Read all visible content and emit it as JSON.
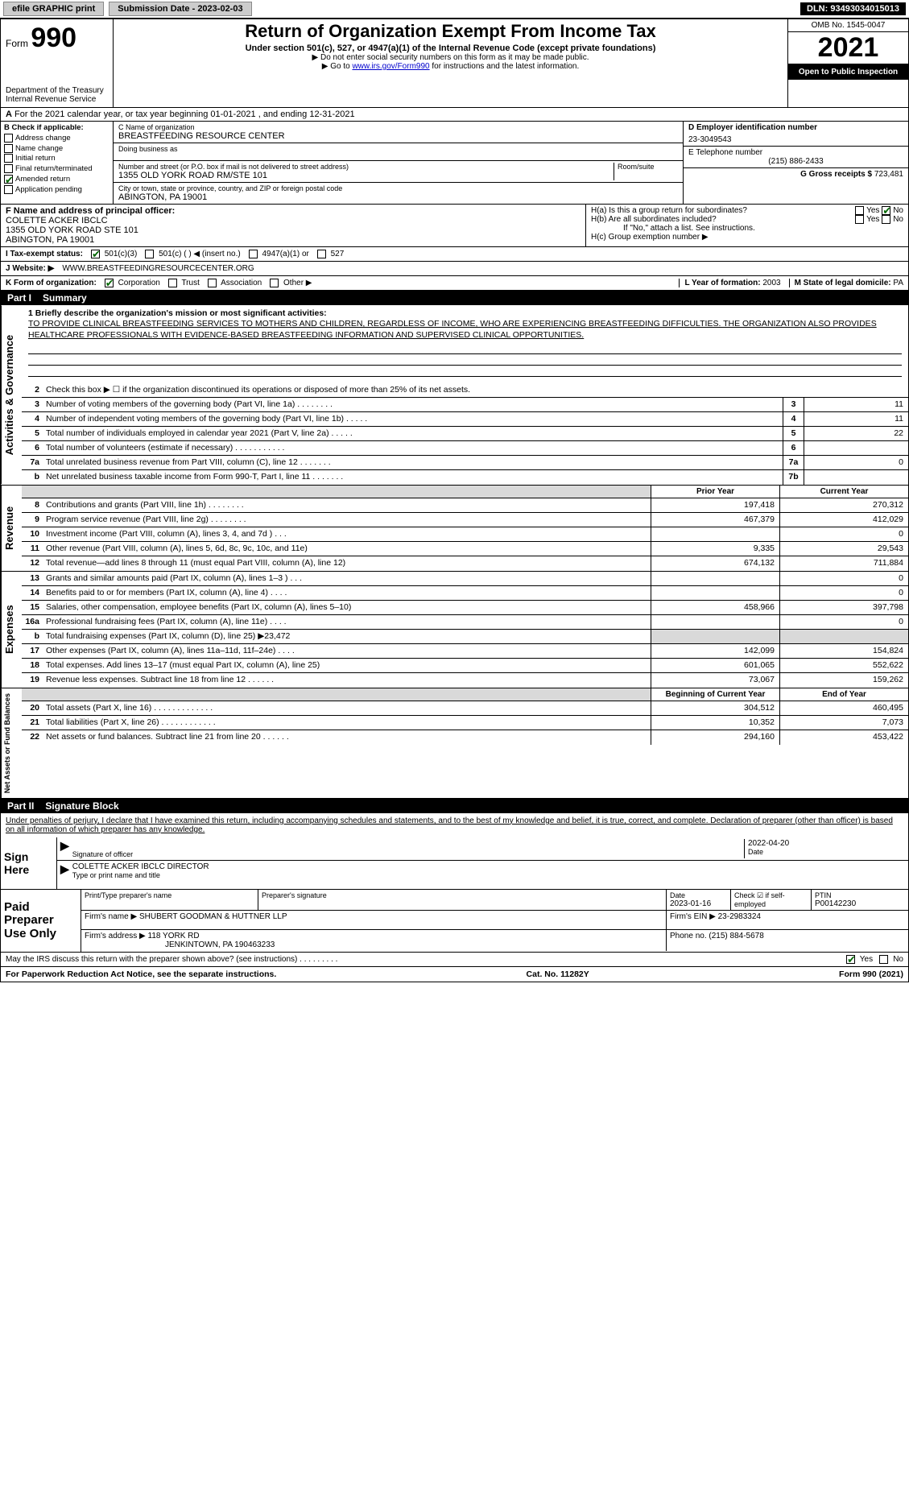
{
  "topbar": {
    "efile_label": "efile GRAPHIC print",
    "submission_label": "Submission Date - 2023-02-03",
    "dln_label": "DLN: 93493034015013"
  },
  "header": {
    "form_prefix": "Form",
    "form_number": "990",
    "dept": "Department of the Treasury",
    "irs": "Internal Revenue Service",
    "title": "Return of Organization Exempt From Income Tax",
    "subtitle": "Under section 501(c), 527, or 4947(a)(1) of the Internal Revenue Code (except private foundations)",
    "note1": "▶ Do not enter social security numbers on this form as it may be made public.",
    "note2_prefix": "▶ Go to ",
    "note2_link": "www.irs.gov/Form990",
    "note2_suffix": " for instructions and the latest information.",
    "omb": "OMB No. 1545-0047",
    "year": "2021",
    "open": "Open to Public Inspection"
  },
  "line_a": "For the 2021 calendar year, or tax year beginning 01-01-2021     , and ending 12-31-2021",
  "box_b": {
    "title": "B Check if applicable:",
    "items": [
      "Address change",
      "Name change",
      "Initial return",
      "Final return/terminated",
      "Amended return",
      "Application pending"
    ],
    "checked_index": 4
  },
  "box_c": {
    "name_label": "C Name of organization",
    "name": "BREASTFEEDING RESOURCE CENTER",
    "dba_label": "Doing business as",
    "addr_label": "Number and street (or P.O. box if mail is not delivered to street address)",
    "room_label": "Room/suite",
    "addr": "1355 OLD YORK ROAD RM/STE 101",
    "city_label": "City or town, state or province, country, and ZIP or foreign postal code",
    "city": "ABINGTON, PA  19001"
  },
  "box_d": {
    "label": "D Employer identification number",
    "value": "23-3049543"
  },
  "box_e": {
    "label": "E Telephone number",
    "value": "(215) 886-2433"
  },
  "box_g": {
    "label": "G Gross receipts $",
    "value": "723,481"
  },
  "box_f": {
    "label": "F Name and address of principal officer:",
    "name": "COLETTE ACKER IBCLC",
    "addr1": "1355 OLD YORK ROAD STE 101",
    "addr2": "ABINGTON, PA  19001"
  },
  "box_h": {
    "a_label": "H(a)  Is this a group return for subordinates?",
    "a_yes": "Yes",
    "a_no": "No",
    "b_label": "H(b)  Are all subordinates included?",
    "b_note": "If \"No,\" attach a list. See instructions.",
    "c_label": "H(c)  Group exemption number ▶"
  },
  "box_i": {
    "label": "I    Tax-exempt status:",
    "opts": [
      "501(c)(3)",
      "501(c) (    ) ◀ (insert no.)",
      "4947(a)(1) or",
      "527"
    ]
  },
  "box_j": {
    "label": "J    Website: ▶",
    "value": "WWW.BREASTFEEDINGRESOURCECENTER.ORG"
  },
  "box_k": {
    "label": "K Form of organization:",
    "opts": [
      "Corporation",
      "Trust",
      "Association",
      "Other ▶"
    ]
  },
  "box_l": {
    "label": "L Year of formation:",
    "value": "2003"
  },
  "box_m": {
    "label": "M State of legal domicile:",
    "value": "PA"
  },
  "part1": {
    "label": "Part I",
    "title": "Summary"
  },
  "mission": {
    "label": "1  Briefly describe the organization's mission or most significant activities:",
    "text": "TO PROVIDE CLINICAL BREASTFEEDING SERVICES TO MOTHERS AND CHILDREN, REGARDLESS OF INCOME, WHO ARE EXPERIENCING BREASTFEEDING DIFFICULTIES. THE ORGANIZATION ALSO PROVIDES HEALTHCARE PROFESSIONALS WITH EVIDENCE-BASED BREASTFEEDING INFORMATION AND SUPERVISED CLINICAL OPPORTUNITIES."
  },
  "vtabs": {
    "gov": "Activities & Governance",
    "rev": "Revenue",
    "exp": "Expenses",
    "net": "Net Assets or Fund Balances"
  },
  "gov_lines": [
    {
      "num": "2",
      "desc": "Check this box ▶ ☐  if the organization discontinued its operations or disposed of more than 25% of its net assets.",
      "box": "",
      "val": ""
    },
    {
      "num": "3",
      "desc": "Number of voting members of the governing body (Part VI, line 1a)   .    .    .    .    .    .    .    .",
      "box": "3",
      "val": "11"
    },
    {
      "num": "4",
      "desc": "Number of independent voting members of the governing body (Part VI, line 1b)   .    .    .    .    .",
      "box": "4",
      "val": "11"
    },
    {
      "num": "5",
      "desc": "Total number of individuals employed in calendar year 2021 (Part V, line 2a)   .    .    .    .    .",
      "box": "5",
      "val": "22"
    },
    {
      "num": "6",
      "desc": "Total number of volunteers (estimate if necessary)    .    .    .    .    .    .    .    .    .    .    .",
      "box": "6",
      "val": ""
    },
    {
      "num": "7a",
      "desc": "Total unrelated business revenue from Part VIII, column (C), line 12   .    .    .    .    .    .    .",
      "box": "7a",
      "val": "0"
    },
    {
      "num": "b",
      "desc": "Net unrelated business taxable income from Form 990-T, Part I, line 11   .    .    .    .    .    .    .",
      "box": "7b",
      "val": ""
    }
  ],
  "col_headers": {
    "prior": "Prior Year",
    "current": "Current Year"
  },
  "rev_lines": [
    {
      "num": "8",
      "desc": "Contributions and grants (Part VIII, line 1h)   .    .    .    .    .    .    .    .",
      "prior": "197,418",
      "curr": "270,312"
    },
    {
      "num": "9",
      "desc": "Program service revenue (Part VIII, line 2g)   .    .    .    .    .    .    .    .",
      "prior": "467,379",
      "curr": "412,029"
    },
    {
      "num": "10",
      "desc": "Investment income (Part VIII, column (A), lines 3, 4, and 7d )   .    .    .",
      "prior": "",
      "curr": "0"
    },
    {
      "num": "11",
      "desc": "Other revenue (Part VIII, column (A), lines 5, 6d, 8c, 9c, 10c, and 11e)",
      "prior": "9,335",
      "curr": "29,543"
    },
    {
      "num": "12",
      "desc": "Total revenue—add lines 8 through 11 (must equal Part VIII, column (A), line 12)",
      "prior": "674,132",
      "curr": "711,884"
    }
  ],
  "exp_lines": [
    {
      "num": "13",
      "desc": "Grants and similar amounts paid (Part IX, column (A), lines 1–3 )   .    .    .",
      "prior": "",
      "curr": "0"
    },
    {
      "num": "14",
      "desc": "Benefits paid to or for members (Part IX, column (A), line 4)   .    .    .    .",
      "prior": "",
      "curr": "0"
    },
    {
      "num": "15",
      "desc": "Salaries, other compensation, employee benefits (Part IX, column (A), lines 5–10)",
      "prior": "458,966",
      "curr": "397,798"
    },
    {
      "num": "16a",
      "desc": "Professional fundraising fees (Part IX, column (A), line 11e)   .    .    .    .",
      "prior": "",
      "curr": "0"
    },
    {
      "num": "b",
      "desc": "Total fundraising expenses (Part IX, column (D), line 25) ▶23,472",
      "prior": "shaded",
      "curr": "shaded"
    },
    {
      "num": "17",
      "desc": "Other expenses (Part IX, column (A), lines 11a–11d, 11f–24e)    .    .    .    .",
      "prior": "142,099",
      "curr": "154,824"
    },
    {
      "num": "18",
      "desc": "Total expenses. Add lines 13–17 (must equal Part IX, column (A), line 25)",
      "prior": "601,065",
      "curr": "552,622"
    },
    {
      "num": "19",
      "desc": "Revenue less expenses. Subtract line 18 from line 12   .    .    .    .    .    .",
      "prior": "73,067",
      "curr": "159,262"
    }
  ],
  "net_headers": {
    "begin": "Beginning of Current Year",
    "end": "End of Year"
  },
  "net_lines": [
    {
      "num": "20",
      "desc": "Total assets (Part X, line 16)   .    .    .    .    .    .    .    .    .    .    .    .    .",
      "prior": "304,512",
      "curr": "460,495"
    },
    {
      "num": "21",
      "desc": "Total liabilities (Part X, line 26)   .    .    .    .    .    .    .    .    .    .    .    .",
      "prior": "10,352",
      "curr": "7,073"
    },
    {
      "num": "22",
      "desc": "Net assets or fund balances. Subtract line 21 from line 20   .    .    .    .    .    .",
      "prior": "294,160",
      "curr": "453,422"
    }
  ],
  "part2": {
    "label": "Part II",
    "title": "Signature Block"
  },
  "penalty": "Under penalties of perjury, I declare that I have examined this return, including accompanying schedules and statements, and to the best of my knowledge and belief, it is true, correct, and complete. Declaration of preparer (other than officer) is based on all information of which preparer has any knowledge.",
  "sign": {
    "here": "Sign Here",
    "sig_label": "Signature of officer",
    "date_label": "Date",
    "date": "2022-04-20",
    "name": "COLETTE ACKER IBCLC  DIRECTOR",
    "name_label": "Type or print name and title"
  },
  "paid": {
    "title": "Paid Preparer Use Only",
    "h1": "Print/Type preparer's name",
    "h2": "Preparer's signature",
    "h3": "Date",
    "h3v": "2023-01-16",
    "h4": "Check ☑ if self-employed",
    "h5": "PTIN",
    "h5v": "P00142230",
    "firm_label": "Firm's name    ▶",
    "firm": "SHUBERT GOODMAN & HUTTNER LLP",
    "ein_label": "Firm's EIN ▶",
    "ein": "23-2983324",
    "addr_label": "Firm's address ▶",
    "addr1": "118 YORK RD",
    "addr2": "JENKINTOWN, PA  190463233",
    "phone_label": "Phone no.",
    "phone": "(215) 884-5678"
  },
  "discuss": {
    "text": "May the IRS discuss this return with the preparer shown above? (see instructions)    .    .    .    .    .    .    .    .    .",
    "yes": "Yes",
    "no": "No"
  },
  "footer": {
    "left": "For Paperwork Reduction Act Notice, see the separate instructions.",
    "mid": "Cat. No. 11282Y",
    "right": "Form 990 (2021)"
  },
  "colors": {
    "link": "#0000cc",
    "check": "#006600",
    "shade": "#d9d9d9"
  }
}
